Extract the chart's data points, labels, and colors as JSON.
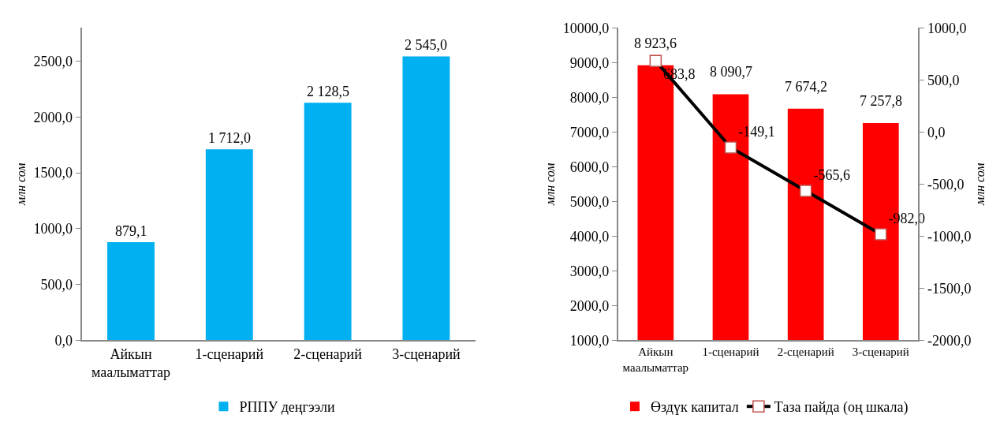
{
  "chart_data": [
    {
      "type": "bar",
      "ylabel": "млн сом",
      "categories": [
        "Айкын\nмаалыматтар",
        "1-сценарий",
        "2-сценарий",
        "3-сценарий"
      ],
      "series": [
        {
          "name": "РППУ деңгээли",
          "color": "#00b0f0",
          "values": [
            879.1,
            1712.0,
            2128.5,
            2545.0
          ],
          "value_labels": [
            "879,1",
            "1 712,0",
            "2 128,5",
            "2 545,0"
          ]
        }
      ],
      "ylim": [
        0,
        2800
      ],
      "yticks": [
        {
          "value": 0,
          "label": "0,0"
        },
        {
          "value": 500,
          "label": "500,0"
        },
        {
          "value": 1000,
          "label": "1000,0"
        },
        {
          "value": 1500,
          "label": "1500,0"
        },
        {
          "value": 2000,
          "label": "2000,0"
        },
        {
          "value": 2500,
          "label": "2500,0"
        }
      ],
      "legend": "bottom"
    },
    {
      "type": "bar",
      "ylabel": "млн сом",
      "y2label": "млн сом",
      "categories": [
        "Айкын\nмаалыматтар",
        "1-сценарий",
        "2-сценарий",
        "3-сценарий"
      ],
      "series": [
        {
          "name": "Өздүк капитал",
          "color": "#ff0000",
          "values": [
            8923.6,
            8090.7,
            7674.2,
            7257.8
          ],
          "value_labels": [
            "8 923,6",
            "8 090,7",
            "7 674,2",
            "7 257,8"
          ]
        },
        {
          "name": "Таза пайда (оң шкала)",
          "type": "line",
          "axis": "y2",
          "color": "#000000",
          "marker": "square",
          "values": [
            683.8,
            -149.1,
            -565.6,
            -982.0
          ],
          "value_labels": [
            "683,8",
            "-149,1",
            "-565,6",
            "-982,0"
          ]
        }
      ],
      "ylim": [
        1000,
        10000
      ],
      "yticks": [
        {
          "value": 1000,
          "label": "1000,0"
        },
        {
          "value": 2000,
          "label": "2000,0"
        },
        {
          "value": 3000,
          "label": "3000,0"
        },
        {
          "value": 4000,
          "label": "4000,0"
        },
        {
          "value": 5000,
          "label": "5000,0"
        },
        {
          "value": 6000,
          "label": "6000,0"
        },
        {
          "value": 7000,
          "label": "7000,0"
        },
        {
          "value": 8000,
          "label": "8000,0"
        },
        {
          "value": 9000,
          "label": "9000,0"
        },
        {
          "value": 10000,
          "label": "10000,0"
        }
      ],
      "y2lim": [
        -2000,
        1000
      ],
      "y2ticks": [
        {
          "value": -2000,
          "label": "-2000,0"
        },
        {
          "value": -1500,
          "label": "-1500,0"
        },
        {
          "value": -1000,
          "label": "-1000,0"
        },
        {
          "value": -500,
          "label": "-500,0"
        },
        {
          "value": 0,
          "label": "0,0"
        },
        {
          "value": 500,
          "label": "500,0"
        },
        {
          "value": 1000,
          "label": "1000,0"
        }
      ],
      "legend": "bottom"
    }
  ]
}
